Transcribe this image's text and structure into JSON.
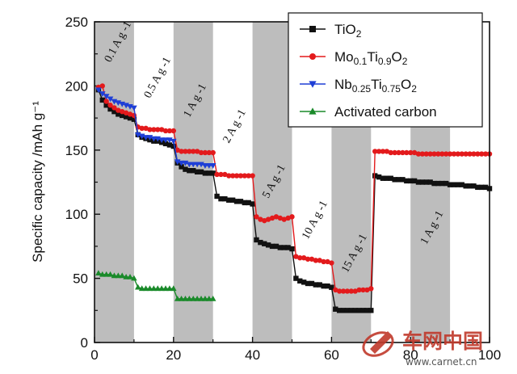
{
  "chart_data": {
    "type": "line",
    "xlabel": "",
    "ylabel": "Specific capacity /mAh g⁻¹",
    "xlim": [
      0,
      100
    ],
    "ylim": [
      0,
      250
    ],
    "xticks": [
      0,
      20,
      40,
      60,
      80,
      100
    ],
    "yticks": [
      0,
      50,
      100,
      150,
      200,
      250
    ],
    "x_tick_labels": [
      "0",
      "20",
      "40",
      "60",
      "80",
      "100"
    ],
    "y_tick_labels": [
      "0",
      "50",
      "100",
      "150",
      "200",
      "250"
    ],
    "grid": false,
    "legend_position": "top-right",
    "shaded_bands": [
      [
        0,
        10
      ],
      [
        20,
        30
      ],
      [
        40,
        50
      ],
      [
        60,
        70
      ],
      [
        80,
        90
      ]
    ],
    "rate_labels": [
      {
        "text": "0.1 A g -1",
        "x": 4,
        "y": 218
      },
      {
        "text": "0.5 A g -1",
        "x": 14,
        "y": 190
      },
      {
        "text": "1 A g -1",
        "x": 24,
        "y": 175
      },
      {
        "text": "2 A g -1",
        "x": 34,
        "y": 155
      },
      {
        "text": "5 A g -1",
        "x": 44,
        "y": 112
      },
      {
        "text": "10 A g -1",
        "x": 54,
        "y": 80
      },
      {
        "text": "15 A g -1",
        "x": 64,
        "y": 54
      },
      {
        "text": "1 A g -1",
        "x": 84,
        "y": 76
      }
    ],
    "series": [
      {
        "name": "TiO2",
        "color": "#111111",
        "marker": "square",
        "x": [
          1,
          2,
          3,
          4,
          5,
          6,
          7,
          8,
          9,
          10,
          11,
          12,
          13,
          14,
          15,
          16,
          17,
          18,
          19,
          20,
          21,
          22,
          23,
          24,
          25,
          26,
          27,
          28,
          29,
          30,
          31,
          32,
          33,
          34,
          35,
          36,
          37,
          38,
          39,
          40,
          41,
          42,
          43,
          44,
          45,
          46,
          47,
          48,
          49,
          50,
          51,
          52,
          53,
          54,
          55,
          56,
          57,
          58,
          59,
          60,
          61,
          62,
          63,
          64,
          65,
          66,
          67,
          68,
          69,
          70,
          71,
          72,
          73,
          74,
          75,
          76,
          77,
          78,
          79,
          80,
          81,
          82,
          83,
          84,
          85,
          86,
          87,
          88,
          89,
          90,
          91,
          92,
          93,
          94,
          95,
          96,
          97,
          98,
          99,
          100
        ],
        "y": [
          197,
          189,
          185,
          182,
          180,
          178,
          177,
          176,
          175,
          174,
          162,
          160,
          159,
          158,
          157,
          157,
          156,
          155,
          154,
          153,
          140,
          137,
          135,
          134,
          134,
          133,
          133,
          132,
          132,
          132,
          114,
          112,
          112,
          111,
          111,
          110,
          110,
          109,
          109,
          108,
          80,
          78,
          77,
          76,
          75,
          75,
          74,
          74,
          74,
          73,
          50,
          48,
          47,
          46,
          46,
          45,
          45,
          44,
          44,
          43,
          26,
          25,
          25,
          25,
          25,
          25,
          25,
          25,
          25,
          25,
          130,
          129,
          128,
          128,
          128,
          127,
          127,
          127,
          126,
          126,
          126,
          125,
          125,
          125,
          125,
          124,
          124,
          124,
          124,
          123,
          123,
          123,
          123,
          122,
          122,
          122,
          121,
          121,
          121,
          120
        ]
      },
      {
        "name": "Mo0.1Ti0.9O2",
        "color": "#e31a1c",
        "marker": "circle",
        "x": [
          1,
          2,
          3,
          4,
          5,
          6,
          7,
          8,
          9,
          10,
          11,
          12,
          13,
          14,
          15,
          16,
          17,
          18,
          19,
          20,
          21,
          22,
          23,
          24,
          25,
          26,
          27,
          28,
          29,
          30,
          31,
          32,
          33,
          34,
          35,
          36,
          37,
          38,
          39,
          40,
          41,
          42,
          43,
          44,
          45,
          46,
          47,
          48,
          49,
          50,
          51,
          52,
          53,
          54,
          55,
          56,
          57,
          58,
          59,
          60,
          61,
          62,
          63,
          64,
          65,
          66,
          67,
          68,
          69,
          70,
          71,
          72,
          73,
          74,
          75,
          76,
          77,
          78,
          79,
          80,
          81,
          82,
          83,
          84,
          85,
          86,
          87,
          88,
          89,
          90,
          91,
          92,
          93,
          94,
          95,
          96,
          97,
          98,
          99,
          100
        ],
        "y": [
          199,
          200,
          188,
          185,
          183,
          181,
          180,
          179,
          178,
          177,
          168,
          167,
          167,
          166,
          166,
          166,
          166,
          165,
          165,
          165,
          150,
          149,
          149,
          149,
          149,
          149,
          148,
          148,
          148,
          148,
          131,
          131,
          131,
          130,
          130,
          130,
          130,
          130,
          130,
          130,
          98,
          96,
          95,
          96,
          97,
          98,
          97,
          96,
          97,
          98,
          67,
          66,
          66,
          65,
          65,
          64,
          64,
          63,
          63,
          62,
          41,
          40,
          40,
          40,
          40,
          40,
          41,
          41,
          41,
          42,
          149,
          149,
          149,
          149,
          148,
          148,
          148,
          148,
          148,
          148,
          148,
          147,
          147,
          147,
          147,
          147,
          147,
          147,
          147,
          147,
          147,
          147,
          147,
          147,
          147,
          147,
          147,
          147,
          147,
          147
        ]
      },
      {
        "name": "Nb0.25Ti0.75O2",
        "color": "#1f3fd6",
        "marker": "triangle-down",
        "x": [
          1,
          2,
          3,
          4,
          5,
          6,
          7,
          8,
          9,
          10,
          11,
          12,
          13,
          14,
          15,
          16,
          17,
          18,
          19,
          20,
          21,
          22,
          23,
          24,
          25,
          26,
          27,
          28,
          29,
          30
        ],
        "y": [
          197,
          194,
          192,
          190,
          188,
          187,
          186,
          185,
          184,
          183,
          162,
          161,
          160,
          160,
          159,
          159,
          158,
          158,
          158,
          157,
          141,
          140,
          140,
          139,
          139,
          139,
          139,
          138,
          138,
          138
        ]
      },
      {
        "name": "Activated carbon",
        "color": "#1a8a2a",
        "marker": "triangle-up",
        "x": [
          1,
          2,
          3,
          4,
          5,
          6,
          7,
          8,
          9,
          10,
          11,
          12,
          13,
          14,
          15,
          16,
          17,
          18,
          19,
          20,
          21,
          22,
          23,
          24,
          25,
          26,
          27,
          28,
          29,
          30
        ],
        "y": [
          54,
          53,
          53,
          53,
          52,
          52,
          52,
          51,
          51,
          50,
          43,
          42,
          42,
          42,
          42,
          42,
          42,
          42,
          42,
          42,
          34,
          34,
          34,
          34,
          34,
          34,
          34,
          34,
          34,
          34
        ]
      }
    ],
    "legend": [
      {
        "prefix": "TiO",
        "sub1": "2",
        "mid": "",
        "sub2": "",
        "tail": "",
        "sub3": ""
      },
      {
        "prefix": "Mo",
        "sub1": "0.1",
        "mid": "Ti",
        "sub2": "0.9",
        "tail": "O",
        "sub3": "2"
      },
      {
        "prefix": "Nb",
        "sub1": "0.25",
        "mid": "Ti",
        "sub2": "0.75",
        "tail": "O",
        "sub3": "2"
      },
      {
        "prefix": "Activated carbon",
        "sub1": "",
        "mid": "",
        "sub2": "",
        "tail": "",
        "sub3": ""
      }
    ]
  },
  "watermark": {
    "brand": "车网中国",
    "url": "www.carnet.cn"
  }
}
